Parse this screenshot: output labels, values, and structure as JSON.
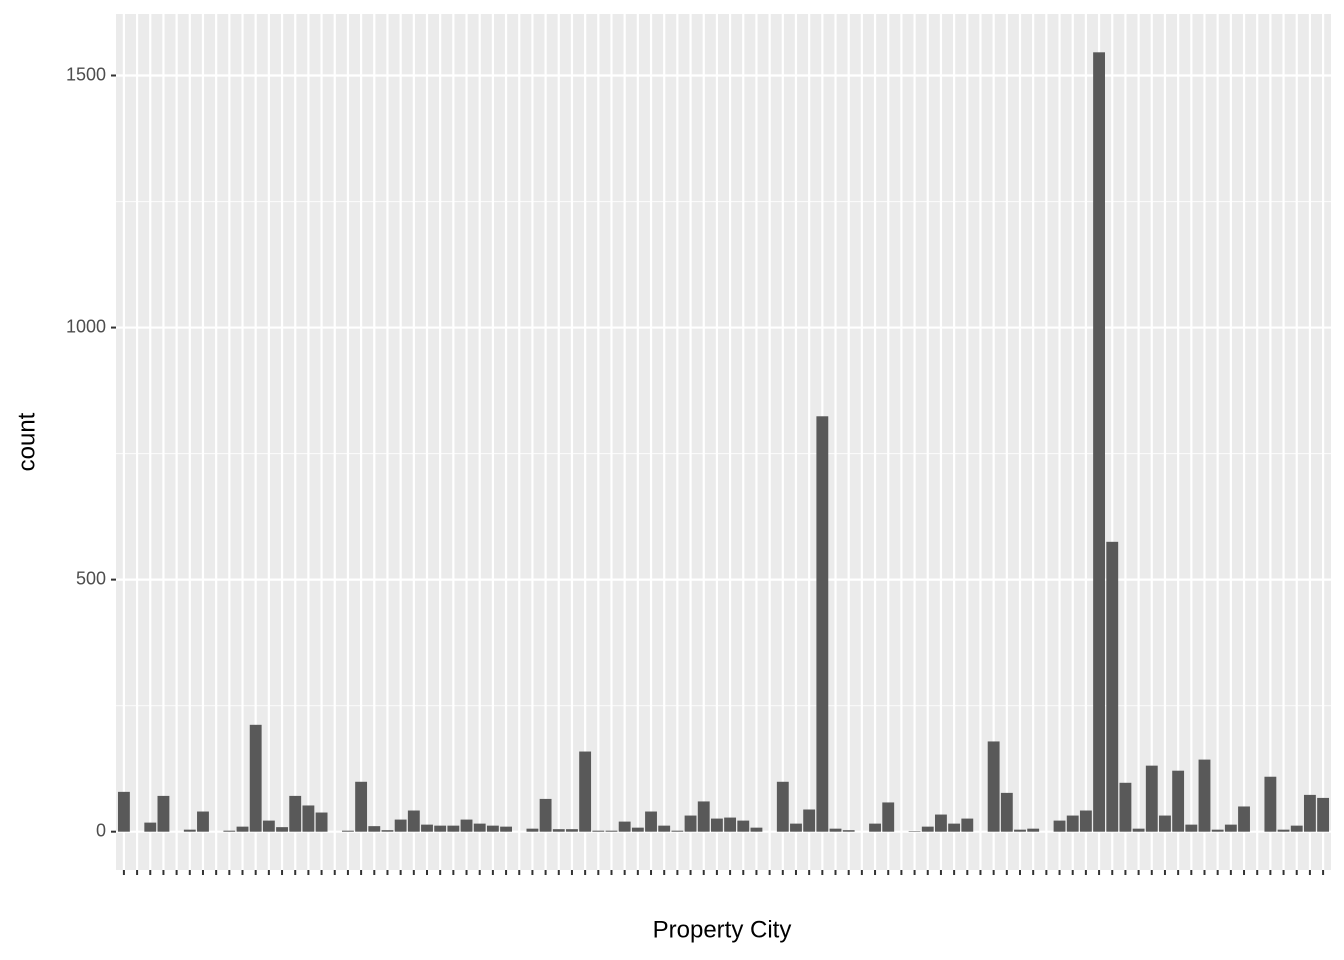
{
  "chart_data": {
    "type": "bar",
    "x_label": "Property City",
    "y_label": "count",
    "categories": [
      null,
      null,
      null,
      null,
      null,
      null,
      null,
      null,
      null,
      null,
      null,
      null,
      null,
      null,
      null,
      null,
      null,
      null,
      null,
      null,
      null,
      null,
      null,
      null,
      null,
      null,
      null,
      null,
      null,
      null,
      null,
      null,
      null,
      null,
      null,
      null,
      null,
      null,
      null,
      null,
      null,
      null,
      null,
      null,
      null,
      null,
      null,
      null,
      null,
      null,
      null,
      null,
      null,
      null,
      null,
      null,
      null,
      null,
      null,
      null,
      null,
      null,
      null,
      null,
      null,
      null,
      null,
      null,
      null,
      null,
      null,
      null,
      null,
      null,
      null,
      null,
      null,
      null,
      null,
      null,
      null,
      null,
      null,
      null,
      null,
      null,
      null,
      null,
      null,
      null,
      null,
      null
    ],
    "values": [
      79,
      0,
      18,
      71,
      0,
      4,
      40,
      0,
      2,
      10,
      212,
      22,
      9,
      71,
      52,
      38,
      0,
      2,
      99,
      11,
      3,
      24,
      42,
      14,
      12,
      12,
      24,
      16,
      12,
      10,
      0,
      6,
      65,
      5,
      5,
      159,
      2,
      2,
      20,
      8,
      40,
      12,
      2,
      32,
      60,
      26,
      28,
      22,
      8,
      0,
      99,
      16,
      44,
      824,
      6,
      3,
      0,
      16,
      58,
      0,
      1,
      10,
      34,
      16,
      26,
      0,
      179,
      77,
      4,
      6,
      0,
      22,
      32,
      42,
      1546,
      575,
      97,
      6,
      131,
      32,
      121,
      14,
      143,
      4,
      14,
      50,
      0,
      109,
      4,
      12,
      73,
      67
    ],
    "color": "#595959",
    "ylim": [
      -76,
      1622
    ],
    "yticks": [
      0,
      500,
      1000,
      1500
    ],
    "yminor": [
      250,
      750,
      1250
    ],
    "grid": true
  }
}
